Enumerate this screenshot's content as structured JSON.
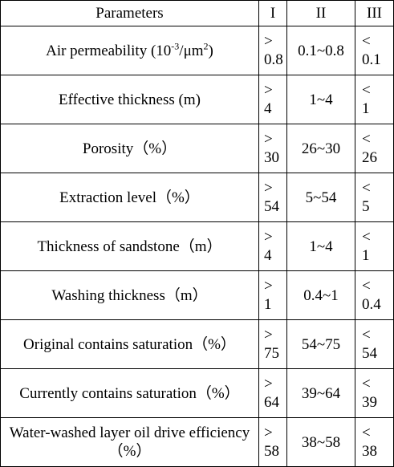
{
  "table": {
    "header": [
      "Parameters",
      "I",
      "II",
      "III"
    ],
    "rows": [
      [
        [
          "Air permeability (10",
          "-3",
          "/μm",
          "2",
          ")"
        ],
        "> 0.8",
        "0.1~0.8",
        "< 0.1"
      ],
      [
        "Effective thickness (m)",
        "> 4",
        "1~4",
        "< 1"
      ],
      [
        "Porosity（%）",
        "> 30",
        "26~30",
        "< 26"
      ],
      [
        "Extraction level（%）",
        "> 54",
        "5~54",
        "< 5"
      ],
      [
        "Thickness of sandstone（m）",
        "> 4",
        "1~4",
        "< 1"
      ],
      [
        "Washing thickness（m）",
        "> 1",
        "0.4~1",
        "< 0.4"
      ],
      [
        "Original contains saturation（%）",
        "> 75",
        "54~75",
        "< 54"
      ],
      [
        "Currently contains saturation（%）",
        "> 64",
        "39~64",
        "< 39"
      ],
      [
        "Water-washed layer oil drive efficiency（%）",
        "> 58",
        "38~58",
        "< 38"
      ]
    ]
  }
}
